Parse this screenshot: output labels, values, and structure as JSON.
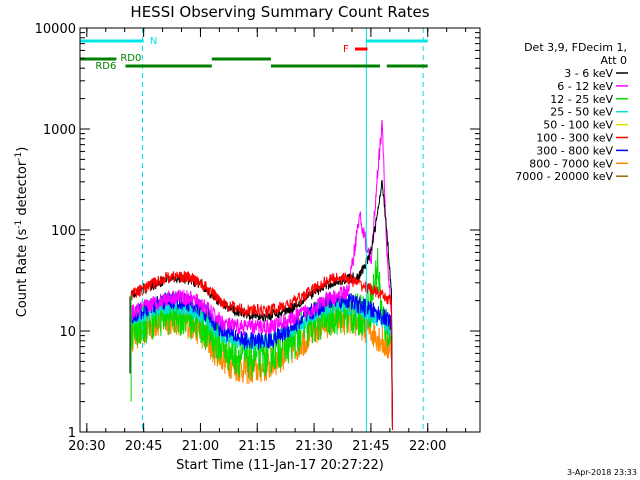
{
  "chart_data": {
    "type": "line",
    "title": "HESSI Observing Summary Count Rates",
    "xlabel": "Start Time (11-Jan-17 20:27:22)",
    "ylabel_main": "Count Rate (s",
    "ylabel_sup1": "-1",
    "ylabel_mid": " detector",
    "ylabel_sup2": "-1",
    "ylabel_end": ")",
    "footer": "3-Apr-2018 23:33",
    "yscale": "log",
    "ylim": [
      1,
      10000
    ],
    "xlim_minutes": [
      20.47,
      22.23
    ],
    "x_tick_labels": [
      "20:30",
      "20:45",
      "21:00",
      "21:15",
      "21:30",
      "21:45",
      "22:00"
    ],
    "x_tick_values": [
      20.5,
      20.75,
      21.0,
      21.25,
      21.5,
      21.75,
      22.0
    ],
    "y_tick_labels": [
      "1",
      "10",
      "100",
      "1000",
      "10000"
    ],
    "y_tick_values": [
      1,
      10,
      100,
      1000,
      10000
    ],
    "legend_header": [
      "Det 3,9, FDecim 1,",
      "Att 0"
    ],
    "legend_position": "right",
    "series": [
      {
        "name": "3 - 6 keV",
        "color": "#000000"
      },
      {
        "name": "6 - 12 keV",
        "color": "#ff00ff"
      },
      {
        "name": "12 - 25 keV",
        "color": "#00dd00"
      },
      {
        "name": "25 - 50 keV",
        "color": "#00dddd"
      },
      {
        "name": "50 - 100 keV",
        "color": "#dddd00"
      },
      {
        "name": "100 - 300 keV",
        "color": "#ff0000"
      },
      {
        "name": "300 - 800 keV",
        "color": "#0000ff"
      },
      {
        "name": "800 - 7000 keV",
        "color": "#ff8800"
      },
      {
        "name": "7000 - 20000 keV",
        "color": "#996600"
      }
    ],
    "profile_points_x": [
      20.695,
      20.75,
      20.8,
      20.85,
      20.9,
      20.95,
      21.0,
      21.05,
      21.1,
      21.15,
      21.2,
      21.25,
      21.3,
      21.35,
      21.4,
      21.45,
      21.5,
      21.55,
      21.6,
      21.65,
      21.7,
      21.75,
      21.78,
      21.8,
      21.82,
      21.84
    ],
    "profile_series": {
      "red": [
        23,
        26,
        30,
        34,
        35,
        34,
        30,
        24,
        19,
        17,
        16,
        16,
        16,
        17,
        19,
        22,
        26,
        31,
        34,
        33,
        29,
        26,
        24,
        22,
        21,
        20
      ],
      "black": [
        23,
        26,
        29,
        32,
        33,
        32,
        29,
        23,
        18,
        16,
        15,
        14,
        14,
        15,
        17,
        20,
        24,
        28,
        31,
        33,
        35,
        60,
        150,
        300,
        100,
        25
      ],
      "magenta": [
        15,
        17,
        19,
        21,
        22,
        21,
        19,
        15,
        12,
        11,
        11,
        11,
        11,
        12,
        13,
        15,
        17,
        20,
        22,
        25,
        140,
        45,
        400,
        1100,
        60,
        15
      ],
      "blue": [
        14,
        16,
        18,
        20,
        20,
        19,
        17,
        13,
        10,
        9,
        8,
        8,
        8,
        9,
        11,
        13,
        16,
        19,
        21,
        20,
        18,
        16,
        15,
        14,
        13,
        12
      ],
      "cyan": [
        13,
        14,
        16,
        17,
        17,
        16,
        14,
        11,
        9,
        8,
        7.5,
        7.5,
        8,
        9,
        10,
        12,
        14,
        16,
        18,
        17,
        16,
        14,
        13,
        12,
        11,
        10
      ],
      "green": [
        11,
        12,
        14,
        15,
        15,
        14,
        12,
        9,
        7,
        6,
        5.5,
        5.5,
        6,
        7,
        8,
        10,
        12,
        14,
        15,
        15,
        14,
        18,
        45,
        13,
        11,
        9
      ],
      "orange": [
        9,
        10,
        12,
        13,
        13,
        12,
        10,
        7,
        5.5,
        4.5,
        4.2,
        4.2,
        4.5,
        5.5,
        6.5,
        8,
        10,
        12,
        13,
        13,
        12,
        10,
        9,
        8,
        7,
        7
      ]
    },
    "top_bars": [
      {
        "label": "N",
        "color": "#00e5e5",
        "segments": [
          [
            20.47,
            20.75
          ],
          [
            21.73,
            22.0
          ]
        ]
      },
      {
        "label": "F",
        "color": "#ff0000",
        "segments": [
          [
            21.68,
            21.735
          ]
        ]
      },
      {
        "label": "RD0",
        "color": "#008000",
        "segments": [
          [
            20.47,
            20.63
          ],
          [
            21.05,
            21.31
          ]
        ]
      },
      {
        "label": "RD6",
        "color": "#008000",
        "segments": [
          [
            20.67,
            21.05
          ],
          [
            21.31,
            21.79
          ],
          [
            21.82,
            22.0
          ]
        ]
      }
    ],
    "vlines_solid": [
      20.47,
      21.73
    ],
    "vlines_dashed": [
      20.745,
      21.98
    ]
  }
}
